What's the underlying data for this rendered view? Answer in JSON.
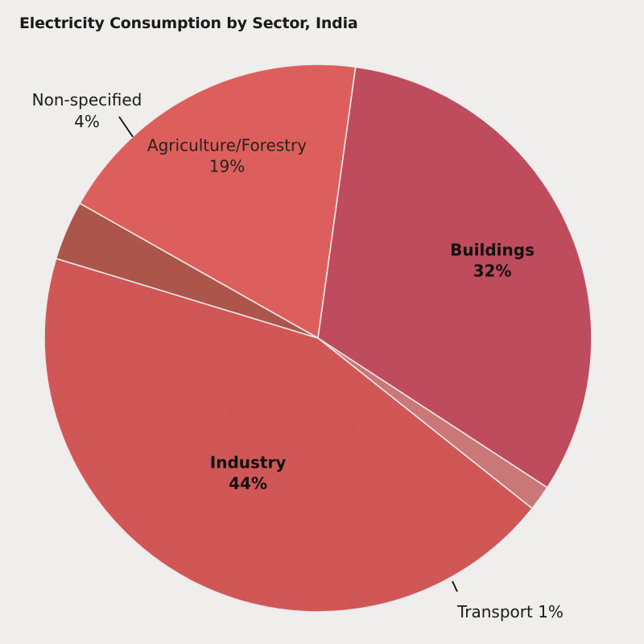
{
  "chart_data": {
    "type": "pie",
    "title": "Electricity Consumption by Sector, India",
    "slices": [
      {
        "label": "Agriculture/Forestry",
        "value": 19,
        "display": "19%",
        "color": "#e2625f",
        "bold": false
      },
      {
        "label": "Buildings",
        "value": 32,
        "display": "32%",
        "color": "#c34f61",
        "bold": true
      },
      {
        "label": "Transport",
        "value": 1.5,
        "display": "1%",
        "color": "#cf7a7b",
        "bold": false
      },
      {
        "label": "Industry",
        "value": 44,
        "display": "44%",
        "color": "#d65a5a",
        "bold": true
      },
      {
        "label": "Non-specified",
        "value": 3.5,
        "display": "4%",
        "color": "#b0584e",
        "bold": false
      }
    ]
  }
}
